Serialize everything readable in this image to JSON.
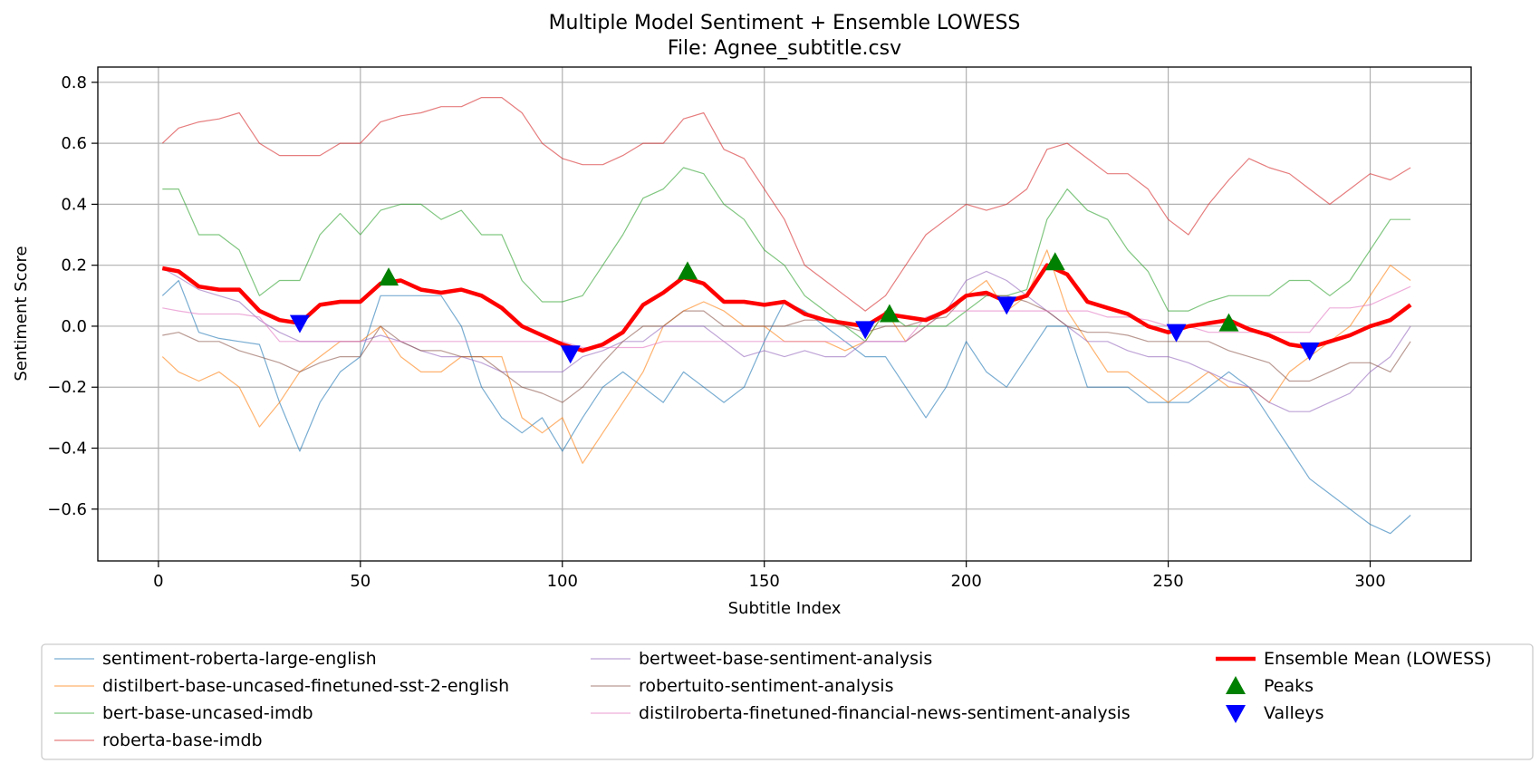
{
  "chart_data": {
    "type": "line",
    "title": "Multiple Model Sentiment + Ensemble LOWESS",
    "subtitle": "File: Agnee_subtitle.csv",
    "xlabel": "Subtitle Index",
    "ylabel": "Sentiment Score",
    "xlim": [
      -15,
      325
    ],
    "ylim": [
      -0.77,
      0.85
    ],
    "xticks": [
      0,
      50,
      100,
      150,
      200,
      250,
      300
    ],
    "yticks": [
      -0.6,
      -0.4,
      -0.2,
      0.0,
      0.2,
      0.4,
      0.6,
      0.8
    ],
    "xtick_labels": [
      "0",
      "50",
      "100",
      "150",
      "200",
      "250",
      "300"
    ],
    "ytick_labels": [
      "−0.6",
      "−0.4",
      "−0.2",
      "0.0",
      "0.2",
      "0.4",
      "0.6",
      "0.8"
    ],
    "grid": true,
    "legend_position": "below",
    "series": [
      {
        "name": "sentiment-roberta-large-english",
        "color": "#1f77b4",
        "x": [
          1,
          5,
          10,
          15,
          20,
          25,
          30,
          35,
          40,
          45,
          50,
          55,
          60,
          65,
          70,
          75,
          80,
          85,
          90,
          95,
          100,
          105,
          110,
          115,
          120,
          125,
          130,
          135,
          140,
          145,
          150,
          155,
          160,
          165,
          170,
          175,
          180,
          185,
          190,
          195,
          200,
          205,
          210,
          215,
          220,
          225,
          230,
          235,
          240,
          245,
          250,
          255,
          260,
          265,
          270,
          275,
          280,
          285,
          290,
          295,
          300,
          305,
          310
        ],
        "y": [
          0.1,
          0.15,
          -0.02,
          -0.04,
          -0.05,
          -0.06,
          -0.25,
          -0.41,
          -0.25,
          -0.15,
          -0.1,
          0.1,
          0.1,
          0.1,
          0.1,
          0.0,
          -0.2,
          -0.3,
          -0.35,
          -0.3,
          -0.41,
          -0.3,
          -0.2,
          -0.15,
          -0.2,
          -0.25,
          -0.15,
          -0.2,
          -0.25,
          -0.2,
          -0.05,
          0.08,
          0.05,
          0.0,
          -0.05,
          -0.1,
          -0.1,
          -0.2,
          -0.3,
          -0.2,
          -0.05,
          -0.15,
          -0.2,
          -0.1,
          0.0,
          0.0,
          -0.2,
          -0.2,
          -0.2,
          -0.25,
          -0.25,
          -0.25,
          -0.2,
          -0.15,
          -0.2,
          -0.3,
          -0.4,
          -0.5,
          -0.55,
          -0.6,
          -0.65,
          -0.68,
          -0.62
        ]
      },
      {
        "name": "distilbert-base-uncased-finetuned-sst-2-english",
        "color": "#ff7f0e",
        "x": [
          1,
          5,
          10,
          15,
          20,
          25,
          30,
          35,
          40,
          45,
          50,
          55,
          60,
          65,
          70,
          75,
          80,
          85,
          90,
          95,
          100,
          105,
          110,
          115,
          120,
          125,
          130,
          135,
          140,
          145,
          150,
          155,
          160,
          165,
          170,
          175,
          180,
          185,
          190,
          195,
          200,
          205,
          210,
          215,
          220,
          225,
          230,
          235,
          240,
          245,
          250,
          255,
          260,
          265,
          270,
          275,
          280,
          285,
          290,
          295,
          300,
          305,
          310
        ],
        "y": [
          -0.1,
          -0.15,
          -0.18,
          -0.15,
          -0.2,
          -0.33,
          -0.25,
          -0.15,
          -0.1,
          -0.05,
          -0.05,
          0.0,
          -0.1,
          -0.15,
          -0.15,
          -0.1,
          -0.1,
          -0.1,
          -0.3,
          -0.35,
          -0.3,
          -0.45,
          -0.35,
          -0.25,
          -0.15,
          0.0,
          0.05,
          0.08,
          0.05,
          0.0,
          0.0,
          -0.05,
          -0.05,
          -0.05,
          -0.08,
          -0.05,
          0.05,
          -0.05,
          0.0,
          0.05,
          0.1,
          0.15,
          0.05,
          0.1,
          0.25,
          0.05,
          -0.05,
          -0.15,
          -0.15,
          -0.2,
          -0.25,
          -0.2,
          -0.15,
          -0.2,
          -0.2,
          -0.25,
          -0.15,
          -0.1,
          -0.05,
          0.0,
          0.1,
          0.2,
          0.15
        ]
      },
      {
        "name": "bert-base-uncased-imdb",
        "color": "#2ca02c",
        "x": [
          1,
          5,
          10,
          15,
          20,
          25,
          30,
          35,
          40,
          45,
          50,
          55,
          60,
          65,
          70,
          75,
          80,
          85,
          90,
          95,
          100,
          105,
          110,
          115,
          120,
          125,
          130,
          135,
          140,
          145,
          150,
          155,
          160,
          165,
          170,
          175,
          180,
          185,
          190,
          195,
          200,
          205,
          210,
          215,
          220,
          225,
          230,
          235,
          240,
          245,
          250,
          255,
          260,
          265,
          270,
          275,
          280,
          285,
          290,
          295,
          300,
          305,
          310
        ],
        "y": [
          0.45,
          0.45,
          0.3,
          0.3,
          0.25,
          0.1,
          0.15,
          0.15,
          0.3,
          0.37,
          0.3,
          0.38,
          0.4,
          0.4,
          0.35,
          0.38,
          0.3,
          0.3,
          0.15,
          0.08,
          0.08,
          0.1,
          0.2,
          0.3,
          0.42,
          0.45,
          0.52,
          0.5,
          0.4,
          0.35,
          0.25,
          0.2,
          0.1,
          0.05,
          0.0,
          -0.05,
          0.05,
          0.0,
          0.0,
          0.0,
          0.05,
          0.1,
          0.1,
          0.12,
          0.35,
          0.45,
          0.38,
          0.35,
          0.25,
          0.18,
          0.05,
          0.05,
          0.08,
          0.1,
          0.1,
          0.1,
          0.15,
          0.15,
          0.1,
          0.15,
          0.25,
          0.35,
          0.35
        ]
      },
      {
        "name": "roberta-base-imdb",
        "color": "#d62728",
        "x": [
          1,
          5,
          10,
          15,
          20,
          25,
          30,
          35,
          40,
          45,
          50,
          55,
          60,
          65,
          70,
          75,
          80,
          85,
          90,
          95,
          100,
          105,
          110,
          115,
          120,
          125,
          130,
          135,
          140,
          145,
          150,
          155,
          160,
          165,
          170,
          175,
          180,
          185,
          190,
          195,
          200,
          205,
          210,
          215,
          220,
          225,
          230,
          235,
          240,
          245,
          250,
          255,
          260,
          265,
          270,
          275,
          280,
          285,
          290,
          295,
          300,
          305,
          310
        ],
        "y": [
          0.6,
          0.65,
          0.67,
          0.68,
          0.7,
          0.6,
          0.56,
          0.56,
          0.56,
          0.6,
          0.6,
          0.67,
          0.69,
          0.7,
          0.72,
          0.72,
          0.75,
          0.75,
          0.7,
          0.6,
          0.55,
          0.53,
          0.53,
          0.56,
          0.6,
          0.6,
          0.68,
          0.7,
          0.58,
          0.55,
          0.45,
          0.35,
          0.2,
          0.15,
          0.1,
          0.05,
          0.1,
          0.2,
          0.3,
          0.35,
          0.4,
          0.38,
          0.4,
          0.45,
          0.58,
          0.6,
          0.55,
          0.5,
          0.5,
          0.45,
          0.35,
          0.3,
          0.4,
          0.48,
          0.55,
          0.52,
          0.5,
          0.45,
          0.4,
          0.45,
          0.5,
          0.48,
          0.52
        ]
      },
      {
        "name": "bertweet-base-sentiment-analysis",
        "color": "#9467bd",
        "x": [
          1,
          5,
          10,
          15,
          20,
          25,
          30,
          35,
          40,
          45,
          50,
          55,
          60,
          65,
          70,
          75,
          80,
          85,
          90,
          95,
          100,
          105,
          110,
          115,
          120,
          125,
          130,
          135,
          140,
          145,
          150,
          155,
          160,
          165,
          170,
          175,
          180,
          185,
          190,
          195,
          200,
          205,
          210,
          215,
          220,
          225,
          230,
          235,
          240,
          245,
          250,
          255,
          260,
          265,
          270,
          275,
          280,
          285,
          290,
          295,
          300,
          305,
          310
        ],
        "y": [
          0.19,
          0.16,
          0.12,
          0.1,
          0.08,
          0.02,
          -0.02,
          -0.05,
          -0.05,
          -0.05,
          -0.05,
          -0.03,
          -0.05,
          -0.08,
          -0.1,
          -0.1,
          -0.12,
          -0.15,
          -0.15,
          -0.15,
          -0.15,
          -0.1,
          -0.08,
          -0.05,
          -0.05,
          0.0,
          0.0,
          0.0,
          -0.05,
          -0.1,
          -0.08,
          -0.1,
          -0.08,
          -0.1,
          -0.1,
          -0.05,
          -0.05,
          -0.05,
          0.0,
          0.05,
          0.15,
          0.18,
          0.15,
          0.1,
          0.05,
          0.0,
          -0.05,
          -0.05,
          -0.08,
          -0.1,
          -0.1,
          -0.12,
          -0.15,
          -0.18,
          -0.2,
          -0.25,
          -0.28,
          -0.28,
          -0.25,
          -0.22,
          -0.15,
          -0.1,
          0.0
        ]
      },
      {
        "name": "robertuito-sentiment-analysis",
        "color": "#8c564b",
        "x": [
          1,
          5,
          10,
          15,
          20,
          25,
          30,
          35,
          40,
          45,
          50,
          55,
          60,
          65,
          70,
          75,
          80,
          85,
          90,
          95,
          100,
          105,
          110,
          115,
          120,
          125,
          130,
          135,
          140,
          145,
          150,
          155,
          160,
          165,
          170,
          175,
          180,
          185,
          190,
          195,
          200,
          205,
          210,
          215,
          220,
          225,
          230,
          235,
          240,
          245,
          250,
          255,
          260,
          265,
          270,
          275,
          280,
          285,
          290,
          295,
          300,
          305,
          310
        ],
        "y": [
          -0.03,
          -0.02,
          -0.05,
          -0.05,
          -0.08,
          -0.1,
          -0.12,
          -0.15,
          -0.12,
          -0.1,
          -0.1,
          0.0,
          -0.05,
          -0.08,
          -0.08,
          -0.1,
          -0.1,
          -0.15,
          -0.2,
          -0.22,
          -0.25,
          -0.2,
          -0.12,
          -0.05,
          0.0,
          0.0,
          0.05,
          0.05,
          0.0,
          0.0,
          0.0,
          0.0,
          0.02,
          0.02,
          0.0,
          -0.02,
          0.0,
          0.0,
          0.02,
          0.03,
          0.1,
          0.1,
          0.1,
          0.08,
          0.05,
          0.0,
          -0.02,
          -0.02,
          -0.03,
          -0.05,
          -0.05,
          -0.05,
          -0.05,
          -0.08,
          -0.1,
          -0.12,
          -0.18,
          -0.18,
          -0.15,
          -0.12,
          -0.12,
          -0.15,
          -0.05
        ]
      },
      {
        "name": "distilroberta-finetuned-financial-news-sentiment-analysis",
        "color": "#e377c2",
        "x": [
          1,
          5,
          10,
          15,
          20,
          25,
          30,
          35,
          40,
          45,
          50,
          55,
          60,
          65,
          70,
          75,
          80,
          85,
          90,
          95,
          100,
          105,
          110,
          115,
          120,
          125,
          130,
          135,
          140,
          145,
          150,
          155,
          160,
          165,
          170,
          175,
          180,
          185,
          190,
          195,
          200,
          205,
          210,
          215,
          220,
          225,
          230,
          235,
          240,
          245,
          250,
          255,
          260,
          265,
          270,
          275,
          280,
          285,
          290,
          295,
          300,
          305,
          310
        ],
        "y": [
          0.06,
          0.05,
          0.04,
          0.04,
          0.04,
          0.03,
          -0.05,
          -0.05,
          -0.05,
          -0.05,
          -0.05,
          -0.05,
          -0.05,
          -0.05,
          -0.05,
          -0.05,
          -0.05,
          -0.05,
          -0.05,
          -0.05,
          -0.05,
          -0.07,
          -0.07,
          -0.07,
          -0.07,
          -0.05,
          -0.05,
          -0.05,
          -0.05,
          -0.05,
          -0.05,
          -0.05,
          -0.05,
          -0.05,
          -0.05,
          -0.05,
          -0.05,
          -0.05,
          0.03,
          0.05,
          0.05,
          0.05,
          0.05,
          0.05,
          0.05,
          0.05,
          0.05,
          0.03,
          0.03,
          0.02,
          0.0,
          0.0,
          -0.02,
          -0.02,
          -0.02,
          -0.02,
          -0.02,
          -0.02,
          0.06,
          0.06,
          0.07,
          0.1,
          0.13
        ]
      },
      {
        "name": "Ensemble Mean (LOWESS)",
        "color": "#ff0000",
        "x": [
          1,
          5,
          10,
          15,
          20,
          25,
          30,
          35,
          40,
          45,
          50,
          55,
          60,
          65,
          70,
          75,
          80,
          85,
          90,
          95,
          100,
          105,
          110,
          115,
          120,
          125,
          130,
          135,
          140,
          145,
          150,
          155,
          160,
          165,
          170,
          175,
          180,
          185,
          190,
          195,
          200,
          205,
          210,
          215,
          220,
          225,
          230,
          235,
          240,
          245,
          250,
          255,
          260,
          265,
          270,
          275,
          280,
          285,
          290,
          295,
          300,
          305,
          310
        ],
        "y": [
          0.19,
          0.18,
          0.13,
          0.12,
          0.12,
          0.05,
          0.02,
          0.01,
          0.07,
          0.08,
          0.08,
          0.14,
          0.15,
          0.12,
          0.11,
          0.12,
          0.1,
          0.06,
          0.0,
          -0.03,
          -0.06,
          -0.08,
          -0.06,
          -0.02,
          0.07,
          0.11,
          0.16,
          0.14,
          0.08,
          0.08,
          0.07,
          0.08,
          0.04,
          0.02,
          0.01,
          0.0,
          0.04,
          0.03,
          0.02,
          0.05,
          0.1,
          0.11,
          0.08,
          0.1,
          0.2,
          0.17,
          0.08,
          0.06,
          0.04,
          0.0,
          -0.02,
          0.0,
          0.01,
          0.02,
          -0.01,
          -0.03,
          -0.06,
          -0.07,
          -0.05,
          -0.03,
          0.0,
          0.02,
          0.07
        ]
      }
    ],
    "peaks": {
      "name": "Peaks",
      "color": "#008000",
      "x": [
        57,
        131,
        181,
        222,
        265
      ],
      "y": [
        0.16,
        0.18,
        0.04,
        0.21,
        0.01
      ]
    },
    "valleys": {
      "name": "Valleys",
      "color": "#0000ff",
      "x": [
        35,
        102,
        175,
        210,
        252,
        285
      ],
      "y": [
        0.01,
        -0.09,
        -0.01,
        0.07,
        -0.02,
        -0.08
      ]
    }
  }
}
